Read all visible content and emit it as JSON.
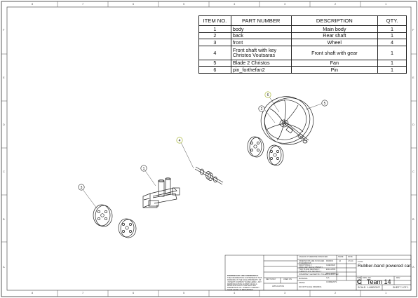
{
  "zones": {
    "cols": [
      "8",
      "7",
      "6",
      "5",
      "4",
      "3",
      "2",
      "1"
    ],
    "rows": [
      "F",
      "E",
      "D",
      "C",
      "B",
      "A"
    ]
  },
  "bom": {
    "headers": [
      "ITEM NO.",
      "PART NUMBER",
      "DESCRIPTION",
      "QTY."
    ],
    "rows": [
      {
        "item": "1",
        "part": "body",
        "desc": "Main body",
        "qty": "1"
      },
      {
        "item": "2",
        "part": "back",
        "desc": "Rear shaft",
        "qty": "1"
      },
      {
        "item": "3",
        "part": "front",
        "desc": "Wheel",
        "qty": "4"
      },
      {
        "item": "4",
        "part": "Front shaft with key Christos Voutsaras",
        "desc": "Front shaft with gear",
        "qty": "1"
      },
      {
        "item": "5",
        "part": "Blade 2 Christos",
        "desc": "Fan",
        "qty": "1"
      },
      {
        "item": "6",
        "part": "pin_forthefan2",
        "desc": "Pin",
        "qty": "1"
      }
    ]
  },
  "balloons": {
    "b1": "1",
    "b2": "2",
    "b3": "3",
    "b4": "4",
    "b5": "5",
    "b6": "6"
  },
  "title_block": {
    "unless": "UNLESS OTHERWISE SPECIFIED:",
    "name": "NAME",
    "date": "DATE",
    "drawn": "DRAWN",
    "drawn_name": "Ali",
    "drawn_date": "1-5-14",
    "checked": "CHECKED",
    "eng_appr": "ENG APPR.",
    "mfg_appr": "MFG APPR.",
    "qa": "Q.A.",
    "comments": "COMMENTS:",
    "dims": "DIMENSIONS ARE IN INCHES",
    "tol": "TOLERANCES:",
    "fractional": "FRACTIONAL ±",
    "angular": "ANGULAR: MACH ±  BEND ±",
    "two_place": "TWO PLACE DECIMAL  ±",
    "three_place": "THREE PLACE DECIMAL  ±",
    "interpret": "INTERPRET GEOMETRIC TOLERANCING PER:",
    "material": "MATERIAL",
    "finish": "FINISH",
    "next_assy": "NEXT ASSY",
    "used_on": "USED ON",
    "application": "APPLICATION",
    "do_not_scale": "DO NOT SCALE DRAWING",
    "prop_title": "PROPRIETARY AND CONFIDENTIAL",
    "prop_body": "THE INFORMATION CONTAINED IN THIS DRAWING IS THE SOLE PROPERTY OF <INSERT COMPANY NAME HERE>. ANY REPRODUCTION IN PART OR AS A WHOLE WITHOUT THE WRITTEN PERMISSION OF <INSERT COMPANY NAME HERE> IS PROHIBITED.",
    "title_label": "TITLE:",
    "title": "Rubber-band powered car.",
    "size_label": "SIZE",
    "size": "C",
    "dwg_no_label": "DWG.  NO.",
    "dwg_no": "Team 14",
    "rev_label": "REV",
    "scale": "SCALE: 1:4",
    "weight": "WEIGHT:",
    "sheet": "SHEET 1 OF 1"
  },
  "colors": {
    "line": "#222222",
    "balloon_highlight": "#b8c45a",
    "frame": "#333333"
  }
}
